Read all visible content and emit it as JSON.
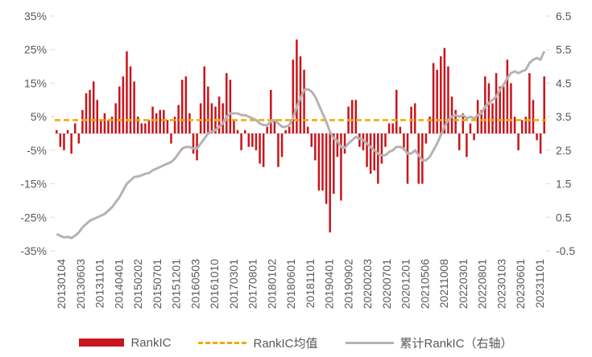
{
  "chart_data": {
    "type": "bar",
    "title": "",
    "colors": {
      "bar": "#c8161d",
      "mean": "#f2a900",
      "cum": "#b9b1b1",
      "axis": "#d9d9d9",
      "text": "#595959"
    },
    "y_left": {
      "lim": [
        -0.35,
        0.35
      ],
      "ticks": [
        -0.35,
        -0.25,
        -0.15,
        -0.05,
        0.05,
        0.15,
        0.25,
        0.35
      ],
      "tick_labels": [
        "-35%",
        "-25%",
        "-15%",
        "-5%",
        "5%",
        "15%",
        "25%",
        "35%"
      ]
    },
    "y_right": {
      "lim": [
        -0.5,
        6.5
      ],
      "ticks": [
        -0.5,
        0.5,
        1.5,
        2.5,
        3.5,
        4.5,
        5.5,
        6.5
      ],
      "tick_labels": [
        "-0.5",
        "0.5",
        "1.5",
        "2.5",
        "3.5",
        "4.5",
        "5.5",
        "6.5"
      ]
    },
    "x_tick_labels": [
      "20130104",
      "20130603",
      "20131101",
      "20140401",
      "20150202",
      "20150701",
      "20151201",
      "20160503",
      "20161010",
      "20170301",
      "20170801",
      "20180102",
      "20180601",
      "20181101",
      "20190401",
      "20190902",
      "20200203",
      "20200701",
      "20201201",
      "20210506",
      "20211008",
      "20220301",
      "20220801",
      "20230103",
      "20230601",
      "20231101"
    ],
    "ic_mean": 0.04,
    "rank_ic": [
      0.01,
      -0.04,
      -0.05,
      0.01,
      -0.06,
      0.03,
      -0.03,
      0.07,
      0.12,
      0.13,
      0.155,
      0.1,
      0.04,
      0.06,
      0.04,
      0.05,
      0.09,
      0.14,
      0.17,
      0.245,
      0.2,
      0.155,
      0.05,
      0.03,
      0.03,
      0.04,
      0.08,
      0.06,
      0.07,
      0.07,
      0.04,
      -0.03,
      0.05,
      0.085,
      0.16,
      0.17,
      0.06,
      -0.06,
      -0.08,
      0.09,
      0.2,
      0.14,
      0.09,
      0.08,
      0.11,
      0.09,
      0.18,
      0.16,
      0.04,
      0.01,
      -0.05,
      0.01,
      -0.04,
      -0.04,
      -0.05,
      -0.09,
      -0.1,
      0.02,
      0.13,
      0.04,
      -0.1,
      -0.07,
      0.01,
      0.02,
      0.22,
      0.28,
      0.23,
      0.19,
      0.02,
      -0.04,
      -0.08,
      -0.17,
      -0.17,
      -0.21,
      -0.295,
      -0.18,
      -0.07,
      -0.2,
      -0.06,
      0.08,
      0.1,
      0.1,
      -0.04,
      -0.05,
      -0.1,
      -0.12,
      -0.11,
      -0.15,
      -0.09,
      -0.04,
      0.03,
      0.03,
      0.13,
      0.02,
      -0.05,
      -0.15,
      0.08,
      0.09,
      -0.15,
      -0.15,
      -0.03,
      0.05,
      0.21,
      0.19,
      0.23,
      0.255,
      0.2,
      0.11,
      0.07,
      -0.05,
      0.06,
      -0.07,
      0.03,
      -0.02,
      0.1,
      0.07,
      0.17,
      0.15,
      0.09,
      0.18,
      0.14,
      0.14,
      0.22,
      0.15,
      0.05,
      -0.05,
      0.04,
      0.05,
      0.18,
      0.1,
      -0.02,
      -0.06,
      0.17
    ],
    "cum_rank_ic": [
      0.0,
      -0.05,
      -0.1,
      -0.08,
      -0.12,
      -0.05,
      0.05,
      0.2,
      0.3,
      0.4,
      0.45,
      0.5,
      0.55,
      0.6,
      0.7,
      0.8,
      0.95,
      1.1,
      1.3,
      1.5,
      1.6,
      1.7,
      1.72,
      1.75,
      1.8,
      1.82,
      1.9,
      1.95,
      2.0,
      2.05,
      2.1,
      2.15,
      2.25,
      2.4,
      2.55,
      2.6,
      2.6,
      2.55,
      2.55,
      2.7,
      2.85,
      3.0,
      3.05,
      3.1,
      3.2,
      3.3,
      3.5,
      3.6,
      3.6,
      3.6,
      3.55,
      3.55,
      3.5,
      3.45,
      3.4,
      3.3,
      3.25,
      3.25,
      3.35,
      3.4,
      3.3,
      3.2,
      3.2,
      3.25,
      3.45,
      3.8,
      4.05,
      4.3,
      4.32,
      4.25,
      4.1,
      3.85,
      3.6,
      3.35,
      3.05,
      2.85,
      2.78,
      2.6,
      2.57,
      2.7,
      2.8,
      2.9,
      2.85,
      2.8,
      2.7,
      2.6,
      2.5,
      2.4,
      2.35,
      2.35,
      2.45,
      2.5,
      2.6,
      2.6,
      2.55,
      2.4,
      2.4,
      2.5,
      2.35,
      2.2,
      2.2,
      2.3,
      2.5,
      2.7,
      2.95,
      3.2,
      3.4,
      3.5,
      3.55,
      3.5,
      3.55,
      3.45,
      3.5,
      3.45,
      3.55,
      3.6,
      3.8,
      3.9,
      4.0,
      4.1,
      4.3,
      4.45,
      4.65,
      4.8,
      4.85,
      4.8,
      4.85,
      4.9,
      5.1,
      5.2,
      5.25,
      5.2,
      5.45
    ]
  },
  "legend": {
    "rank_ic": "RankIC",
    "mean": "RankIC均值",
    "cum": "累计RankIC（右轴）"
  }
}
